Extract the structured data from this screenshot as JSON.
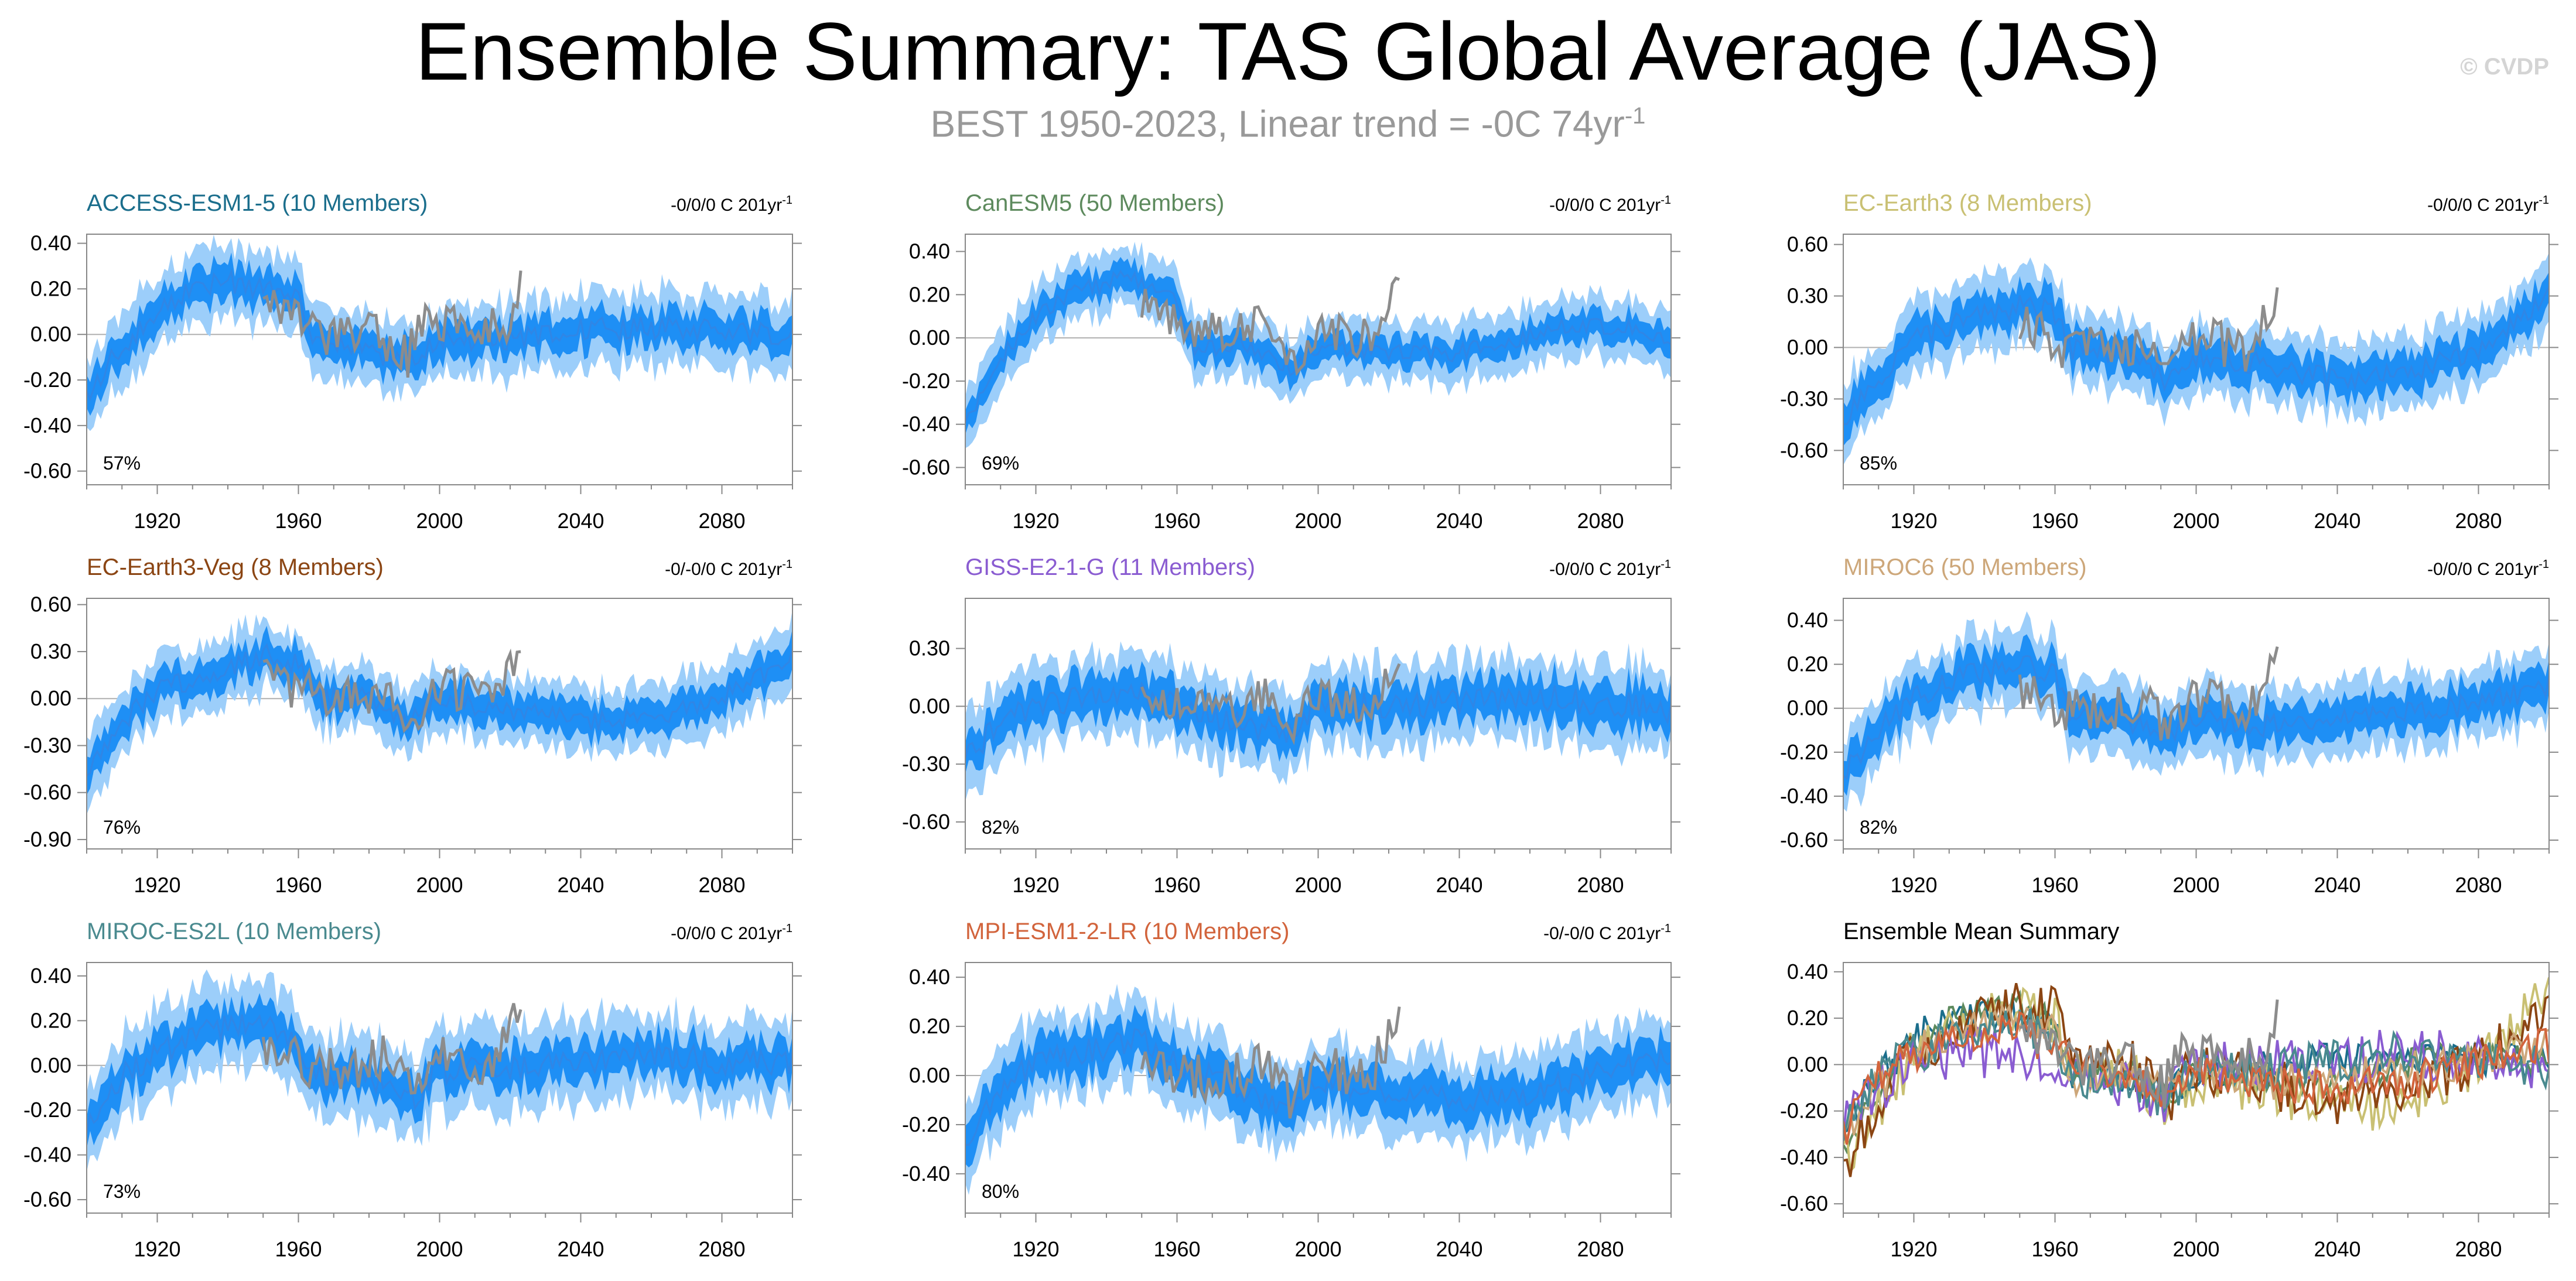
{
  "figure": {
    "title": "Ensemble Summary: TAS Global Average (JAS)",
    "subtitle": "BEST 1950-2023, Linear trend = -0C 74yr",
    "subtitle_sup": "-1",
    "watermark": "© CVDP"
  },
  "colors": {
    "ensemble_mean": "#2f86e6",
    "inner_band": "#1e8ff5",
    "outer_band": "#9ccefa",
    "observations": "#8c8c8c",
    "axis": "#888888",
    "zero_line": "#b0b0b0"
  },
  "chart_data": [
    {
      "id": "access",
      "type": "area",
      "title": "ACCESS-ESM1-5 (10 Members)",
      "title_color": "#1b6e8c",
      "trend_label": "-0/0/0 C 201yr",
      "trend_sup": "-1",
      "pct": "57%",
      "xlim": [
        1900,
        2100
      ],
      "ylim": [
        -0.66,
        0.44
      ],
      "yticks": [
        0.4,
        0.2,
        0.0,
        -0.2,
        -0.4,
        -0.6
      ],
      "ytick_labels": [
        "0.40",
        "0.20",
        "0.00",
        "-0.20",
        "-0.40",
        "-0.60"
      ],
      "xticks": [
        1920,
        1960,
        2000,
        2040,
        2080
      ],
      "xtick_labels": [
        "1920",
        "1960",
        "2000",
        "2040",
        "2080"
      ],
      "mean_knots": [
        [
          1900,
          -0.28
        ],
        [
          1910,
          -0.05
        ],
        [
          1920,
          0.1
        ],
        [
          1930,
          0.2
        ],
        [
          1940,
          0.23
        ],
        [
          1950,
          0.2
        ],
        [
          1960,
          0.15
        ],
        [
          1965,
          -0.03
        ],
        [
          1975,
          -0.05
        ],
        [
          1992,
          -0.12
        ],
        [
          2000,
          -0.02
        ],
        [
          2020,
          -0.02
        ],
        [
          2040,
          0.02
        ],
        [
          2060,
          0.03
        ],
        [
          2080,
          0.02
        ],
        [
          2100,
          0.0
        ]
      ],
      "inner_half": 0.07,
      "outer_half": 0.15,
      "noise": 0.05,
      "obs_knots": [
        [
          1950,
          0.12
        ],
        [
          1960,
          0.08
        ],
        [
          1970,
          -0.02
        ],
        [
          1980,
          0.02
        ],
        [
          1991,
          -0.1
        ],
        [
          1995,
          0.08
        ],
        [
          2010,
          0.0
        ],
        [
          2020,
          0.05
        ],
        [
          2023,
          0.28
        ]
      ],
      "obs_noise": 0.09
    },
    {
      "id": "canesm",
      "type": "area",
      "title": "CanESM5 (50 Members)",
      "title_color": "#5d8a5d",
      "trend_label": "-0/0/0 C 201yr",
      "trend_sup": "-1",
      "pct": "69%",
      "xlim": [
        1900,
        2100
      ],
      "ylim": [
        -0.68,
        0.48
      ],
      "yticks": [
        0.4,
        0.2,
        0.0,
        -0.2,
        -0.4,
        -0.6
      ],
      "ytick_labels": [
        "0.40",
        "0.20",
        "0.00",
        "-0.20",
        "-0.40",
        "-0.60"
      ],
      "xticks": [
        1920,
        1960,
        2000,
        2040,
        2080
      ],
      "xtick_labels": [
        "1920",
        "1960",
        "2000",
        "2040",
        "2080"
      ],
      "mean_knots": [
        [
          1900,
          -0.4
        ],
        [
          1910,
          -0.1
        ],
        [
          1920,
          0.1
        ],
        [
          1930,
          0.2
        ],
        [
          1945,
          0.28
        ],
        [
          1960,
          0.18
        ],
        [
          1965,
          -0.05
        ],
        [
          1980,
          -0.03
        ],
        [
          1992,
          -0.14
        ],
        [
          2000,
          -0.05
        ],
        [
          2020,
          -0.06
        ],
        [
          2035,
          -0.08
        ],
        [
          2050,
          -0.03
        ],
        [
          2070,
          0.05
        ],
        [
          2090,
          0.05
        ],
        [
          2100,
          -0.02
        ]
      ],
      "inner_half": 0.06,
      "outer_half": 0.13,
      "noise": 0.04,
      "obs_knots": [
        [
          1950,
          0.15
        ],
        [
          1962,
          0.05
        ],
        [
          1975,
          0.0
        ],
        [
          1985,
          0.1
        ],
        [
          1992,
          -0.1
        ],
        [
          2000,
          0.05
        ],
        [
          2015,
          0.0
        ],
        [
          2023,
          0.27
        ]
      ],
      "obs_noise": 0.1
    },
    {
      "id": "ecearth3",
      "type": "area",
      "title": "EC-Earth3 (8 Members)",
      "title_color": "#c9c073",
      "trend_label": "-0/0/0 C 201yr",
      "trend_sup": "-1",
      "pct": "85%",
      "xlim": [
        1900,
        2100
      ],
      "ylim": [
        -0.8,
        0.66
      ],
      "yticks": [
        0.6,
        0.3,
        0.0,
        -0.3,
        -0.6
      ],
      "ytick_labels": [
        "0.60",
        "0.30",
        "0.00",
        "-0.30",
        "-0.60"
      ],
      "xticks": [
        1920,
        1960,
        2000,
        2040,
        2080
      ],
      "xtick_labels": [
        "1920",
        "1960",
        "2000",
        "2040",
        "2080"
      ],
      "mean_knots": [
        [
          1900,
          -0.42
        ],
        [
          1910,
          -0.2
        ],
        [
          1920,
          0.05
        ],
        [
          1935,
          0.15
        ],
        [
          1950,
          0.25
        ],
        [
          1960,
          0.2
        ],
        [
          1965,
          -0.02
        ],
        [
          1980,
          -0.02
        ],
        [
          1992,
          -0.2
        ],
        [
          2000,
          -0.05
        ],
        [
          2020,
          -0.1
        ],
        [
          2040,
          -0.2
        ],
        [
          2060,
          -0.15
        ],
        [
          2080,
          0.0
        ],
        [
          2090,
          0.15
        ],
        [
          2100,
          0.3
        ]
      ],
      "inner_half": 0.1,
      "outer_half": 0.2,
      "noise": 0.07,
      "obs_knots": [
        [
          1950,
          0.15
        ],
        [
          1962,
          0.0
        ],
        [
          1975,
          0.05
        ],
        [
          1985,
          0.0
        ],
        [
          1992,
          -0.15
        ],
        [
          2000,
          0.08
        ],
        [
          2015,
          -0.05
        ],
        [
          2023,
          0.35
        ]
      ],
      "obs_noise": 0.13
    },
    {
      "id": "ecveg",
      "type": "area",
      "title": "EC-Earth3-Veg (8 Members)",
      "title_color": "#8b4513",
      "trend_label": "-0/-0/0 C 201yr",
      "trend_sup": "-1",
      "pct": "76%",
      "xlim": [
        1900,
        2100
      ],
      "ylim": [
        -0.96,
        0.64
      ],
      "yticks": [
        0.6,
        0.3,
        0.0,
        -0.3,
        -0.6,
        -0.9
      ],
      "ytick_labels": [
        "0.60",
        "0.30",
        "0.00",
        "-0.30",
        "-0.60",
        "-0.90"
      ],
      "xticks": [
        1920,
        1960,
        2000,
        2040,
        2080
      ],
      "xtick_labels": [
        "1920",
        "1960",
        "2000",
        "2040",
        "2080"
      ],
      "mean_knots": [
        [
          1900,
          -0.45
        ],
        [
          1910,
          -0.15
        ],
        [
          1920,
          0.05
        ],
        [
          1935,
          0.15
        ],
        [
          1950,
          0.28
        ],
        [
          1960,
          0.22
        ],
        [
          1965,
          0.0
        ],
        [
          1980,
          0.02
        ],
        [
          1992,
          -0.15
        ],
        [
          2000,
          0.0
        ],
        [
          2020,
          -0.08
        ],
        [
          2040,
          -0.15
        ],
        [
          2060,
          -0.12
        ],
        [
          2080,
          0.0
        ],
        [
          2090,
          0.12
        ],
        [
          2100,
          0.3
        ]
      ],
      "inner_half": 0.1,
      "outer_half": 0.2,
      "noise": 0.07,
      "obs_knots": [
        [
          1950,
          0.12
        ],
        [
          1962,
          0.05
        ],
        [
          1975,
          0.0
        ],
        [
          1985,
          0.05
        ],
        [
          1992,
          -0.15
        ],
        [
          2000,
          0.08
        ],
        [
          2015,
          0.0
        ],
        [
          2023,
          0.3
        ]
      ],
      "obs_noise": 0.13
    },
    {
      "id": "giss",
      "type": "area",
      "title": "GISS-E2-1-G (11 Members)",
      "title_color": "#8a5cd1",
      "trend_label": "-0/0/0 C 201yr",
      "trend_sup": "-1",
      "pct": "82%",
      "xlim": [
        1900,
        2100
      ],
      "ylim": [
        -0.74,
        0.56
      ],
      "yticks": [
        0.3,
        0.0,
        -0.3,
        -0.6
      ],
      "ytick_labels": [
        "0.30",
        "0.00",
        "-0.30",
        "-0.60"
      ],
      "xticks": [
        1920,
        1960,
        2000,
        2040,
        2080
      ],
      "xtick_labels": [
        "1920",
        "1960",
        "2000",
        "2040",
        "2080"
      ],
      "mean_knots": [
        [
          1900,
          -0.25
        ],
        [
          1910,
          -0.1
        ],
        [
          1920,
          0.02
        ],
        [
          1940,
          0.05
        ],
        [
          1950,
          0.05
        ],
        [
          1960,
          0.0
        ],
        [
          1970,
          -0.05
        ],
        [
          1992,
          -0.15
        ],
        [
          2000,
          0.0
        ],
        [
          2020,
          0.0
        ],
        [
          2040,
          0.02
        ],
        [
          2060,
          0.05
        ],
        [
          2080,
          0.02
        ],
        [
          2100,
          -0.02
        ]
      ],
      "inner_half": 0.1,
      "outer_half": 0.2,
      "noise": 0.07,
      "obs_knots": [
        [
          1950,
          0.1
        ],
        [
          1962,
          0.0
        ],
        [
          1975,
          -0.02
        ],
        [
          1985,
          0.05
        ],
        [
          1992,
          -0.1
        ],
        [
          2000,
          0.05
        ],
        [
          2015,
          0.0
        ],
        [
          2023,
          0.22
        ]
      ],
      "obs_noise": 0.1
    },
    {
      "id": "miroc6",
      "type": "area",
      "title": "MIROC6 (50 Members)",
      "title_color": "#cda77a",
      "trend_label": "-0/0/0 C 201yr",
      "trend_sup": "-1",
      "pct": "82%",
      "xlim": [
        1900,
        2100
      ],
      "ylim": [
        -0.64,
        0.5
      ],
      "yticks": [
        0.4,
        0.2,
        0.0,
        -0.2,
        -0.4,
        -0.6
      ],
      "ytick_labels": [
        "0.40",
        "0.20",
        "0.00",
        "-0.20",
        "-0.40",
        "-0.60"
      ],
      "xticks": [
        1920,
        1960,
        2000,
        2040,
        2080
      ],
      "xtick_labels": [
        "1920",
        "1960",
        "2000",
        "2040",
        "2080"
      ],
      "mean_knots": [
        [
          1900,
          -0.3
        ],
        [
          1910,
          -0.1
        ],
        [
          1920,
          0.05
        ],
        [
          1935,
          0.15
        ],
        [
          1950,
          0.2
        ],
        [
          1960,
          0.15
        ],
        [
          1965,
          -0.05
        ],
        [
          1980,
          -0.05
        ],
        [
          1992,
          -0.12
        ],
        [
          2000,
          -0.05
        ],
        [
          2020,
          -0.08
        ],
        [
          2040,
          -0.05
        ],
        [
          2060,
          -0.02
        ],
        [
          2080,
          0.02
        ],
        [
          2100,
          0.1
        ]
      ],
      "inner_half": 0.08,
      "outer_half": 0.16,
      "noise": 0.05,
      "obs_knots": [
        [
          1950,
          0.1
        ],
        [
          1962,
          0.0
        ],
        [
          1975,
          -0.02
        ],
        [
          1985,
          0.05
        ],
        [
          1992,
          -0.12
        ],
        [
          2000,
          0.05
        ],
        [
          2015,
          -0.02
        ],
        [
          2023,
          0.28
        ]
      ],
      "obs_noise": 0.1
    },
    {
      "id": "mirocesl",
      "type": "area",
      "title": "MIROC-ES2L (10 Members)",
      "title_color": "#4a8a8f",
      "trend_label": "-0/0/0 C 201yr",
      "trend_sup": "-1",
      "pct": "73%",
      "xlim": [
        1900,
        2100
      ],
      "ylim": [
        -0.66,
        0.46
      ],
      "yticks": [
        0.4,
        0.2,
        0.0,
        -0.2,
        -0.4,
        -0.6
      ],
      "ytick_labels": [
        "0.40",
        "0.20",
        "0.00",
        "-0.20",
        "-0.40",
        "-0.60"
      ],
      "xticks": [
        1920,
        1960,
        2000,
        2040,
        2080
      ],
      "xtick_labels": [
        "1920",
        "1960",
        "2000",
        "2040",
        "2080"
      ],
      "mean_knots": [
        [
          1900,
          -0.3
        ],
        [
          1910,
          -0.05
        ],
        [
          1920,
          0.05
        ],
        [
          1935,
          0.15
        ],
        [
          1950,
          0.2
        ],
        [
          1960,
          0.1
        ],
        [
          1965,
          -0.05
        ],
        [
          1980,
          -0.05
        ],
        [
          1992,
          -0.15
        ],
        [
          2000,
          -0.02
        ],
        [
          2020,
          -0.02
        ],
        [
          2040,
          0.02
        ],
        [
          2060,
          0.05
        ],
        [
          2080,
          0.02
        ],
        [
          2100,
          0.0
        ]
      ],
      "inner_half": 0.08,
      "outer_half": 0.18,
      "noise": 0.06,
      "obs_knots": [
        [
          1950,
          0.1
        ],
        [
          1962,
          0.0
        ],
        [
          1975,
          -0.02
        ],
        [
          1985,
          0.05
        ],
        [
          1992,
          -0.12
        ],
        [
          2000,
          0.05
        ],
        [
          2015,
          0.0
        ],
        [
          2023,
          0.25
        ]
      ],
      "obs_noise": 0.1
    },
    {
      "id": "mpi",
      "type": "area",
      "title": "MPI-ESM1-2-LR (10 Members)",
      "title_color": "#d2643c",
      "trend_label": "-0/-0/0 C 201yr",
      "trend_sup": "-1",
      "pct": "80%",
      "xlim": [
        1900,
        2100
      ],
      "ylim": [
        -0.56,
        0.46
      ],
      "yticks": [
        0.4,
        0.2,
        0.0,
        -0.2,
        -0.4
      ],
      "ytick_labels": [
        "0.40",
        "0.20",
        "0.00",
        "-0.20",
        "-0.40"
      ],
      "xticks": [
        1920,
        1960,
        2000,
        2040,
        2080
      ],
      "xtick_labels": [
        "1920",
        "1960",
        "2000",
        "2040",
        "2080"
      ],
      "mean_knots": [
        [
          1900,
          -0.3
        ],
        [
          1910,
          -0.05
        ],
        [
          1920,
          0.05
        ],
        [
          1935,
          0.1
        ],
        [
          1950,
          0.15
        ],
        [
          1960,
          0.05
        ],
        [
          1970,
          0.0
        ],
        [
          1992,
          -0.15
        ],
        [
          2000,
          -0.02
        ],
        [
          2020,
          -0.08
        ],
        [
          2040,
          -0.1
        ],
        [
          2060,
          -0.08
        ],
        [
          2080,
          0.02
        ],
        [
          2100,
          0.08
        ]
      ],
      "inner_half": 0.08,
      "outer_half": 0.16,
      "noise": 0.05,
      "obs_knots": [
        [
          1950,
          0.1
        ],
        [
          1962,
          0.0
        ],
        [
          1975,
          -0.02
        ],
        [
          1985,
          0.05
        ],
        [
          1992,
          -0.12
        ],
        [
          2000,
          0.05
        ],
        [
          2015,
          0.0
        ],
        [
          2023,
          0.28
        ]
      ],
      "obs_noise": 0.1
    },
    {
      "id": "summary",
      "type": "line",
      "title": "Ensemble Mean Summary",
      "title_color": "#000000",
      "xlim": [
        1900,
        2100
      ],
      "ylim": [
        -0.64,
        0.44
      ],
      "yticks": [
        0.4,
        0.2,
        0.0,
        -0.2,
        -0.4,
        -0.6
      ],
      "ytick_labels": [
        "0.40",
        "0.20",
        "0.00",
        "-0.20",
        "-0.40",
        "-0.60"
      ],
      "xticks": [
        1920,
        1960,
        2000,
        2040,
        2080
      ],
      "xtick_labels": [
        "1920",
        "1960",
        "2000",
        "2040",
        "2080"
      ],
      "series_from": [
        "access",
        "canesm",
        "ecearth3",
        "ecveg",
        "giss",
        "miroc6",
        "mirocesl",
        "mpi"
      ],
      "series_colors": [
        "#1b6e8c",
        "#5d8a5d",
        "#c9c073",
        "#8b4513",
        "#8a5cd1",
        "#cda77a",
        "#4a8a8f",
        "#d2643c"
      ],
      "obs_from": "access"
    }
  ]
}
